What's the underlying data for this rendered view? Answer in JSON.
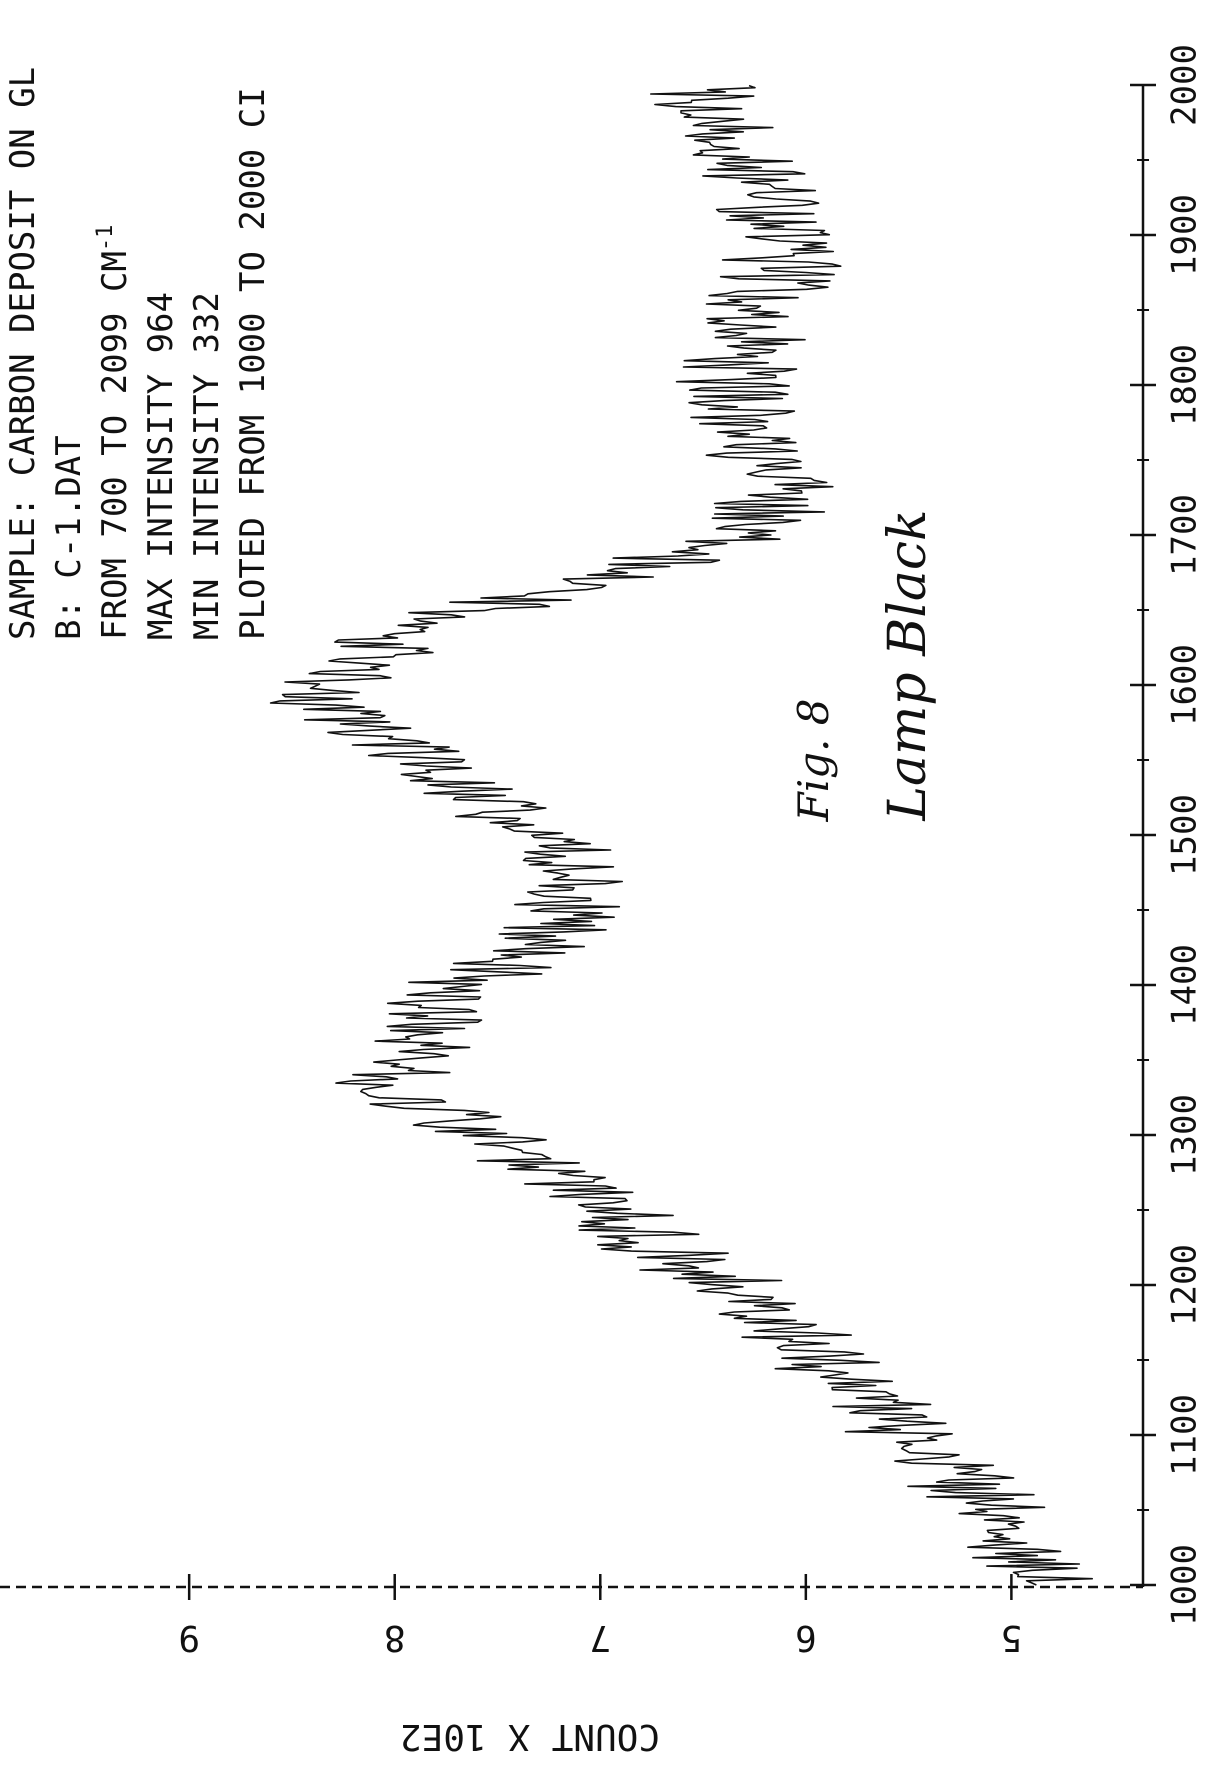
{
  "figure": {
    "label": "Fig. 8",
    "handwritten_title": "Lamp Black"
  },
  "header_lines": [
    "SAMPLE: CARBON DEPOSIT ON GL",
    "B: C-1.DAT",
    "FROM 700 TO 2099 CM",
    "MAX INTENSITY 964",
    "MIN INTENSITY 332",
    "PLOTED FROM 1000 TO 2000 CI"
  ],
  "header_superscript": "-1",
  "chart_data": {
    "type": "line",
    "orientation": "rotated-90-clockwise",
    "xlabel": "",
    "ylabel": "COUNT X 10E2",
    "xlim": [
      1000,
      2000
    ],
    "ylim": [
      4.35,
      9.75
    ],
    "x_ticks": [
      1000,
      1100,
      1200,
      1300,
      1400,
      1500,
      1600,
      1700,
      1800,
      1900,
      2000
    ],
    "x_tick_labels": [
      "1000",
      "1100",
      "1200",
      "1300",
      "1400",
      "1500",
      "1600",
      "1700",
      "1800",
      "1900",
      "2000"
    ],
    "y_ticks": [
      5,
      6,
      7,
      8,
      9
    ],
    "y_tick_labels": [
      "5",
      "6",
      "7",
      "8",
      "9"
    ],
    "grid": false,
    "series": [
      {
        "x": [
          1000,
          1050,
          1100,
          1150,
          1200,
          1250,
          1300,
          1330,
          1350,
          1400,
          1420,
          1450,
          1480,
          1500,
          1530,
          1570,
          1590,
          1610,
          1650,
          1700,
          1750,
          1800,
          1850,
          1900,
          1950,
          2000
        ],
        "values": [
          4.8,
          5.1,
          5.5,
          5.9,
          6.4,
          7.0,
          7.5,
          8.05,
          7.95,
          7.7,
          7.25,
          7.15,
          7.05,
          7.4,
          7.7,
          8.1,
          8.35,
          8.3,
          7.6,
          6.25,
          6.15,
          6.35,
          6.25,
          6.05,
          6.3,
          6.5
        ]
      }
    ],
    "noise_amplitude": 0.35
  }
}
